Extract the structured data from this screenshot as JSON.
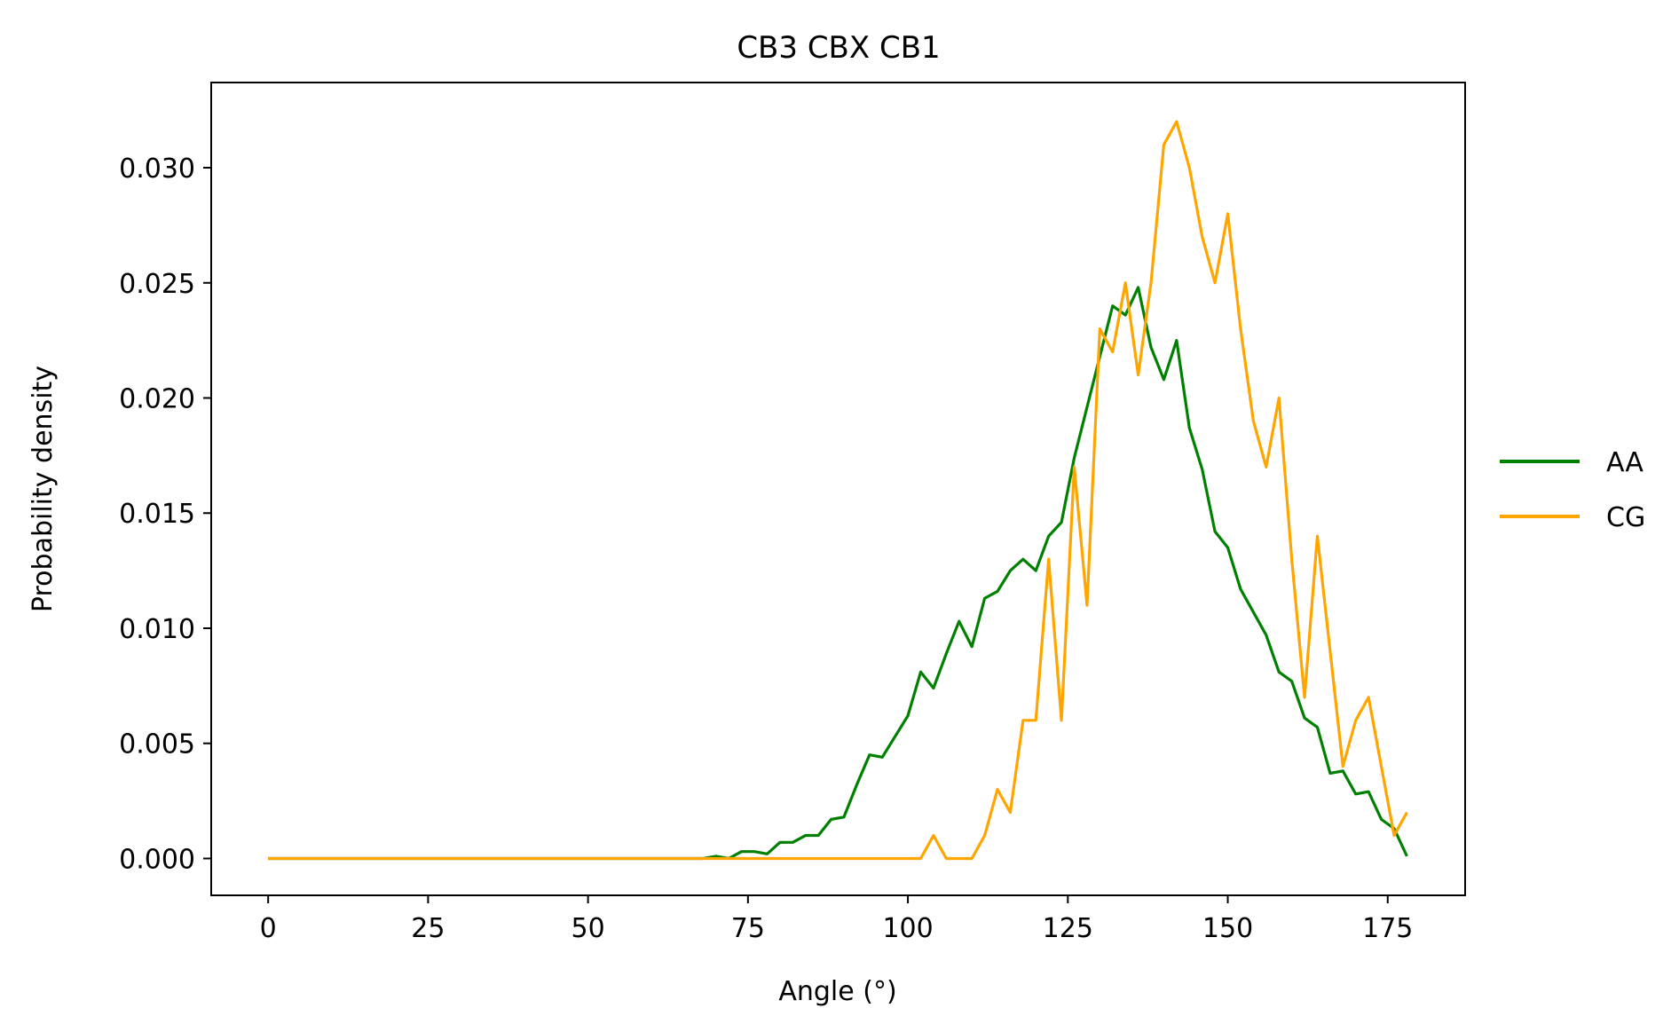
{
  "chart_data": {
    "type": "line",
    "title": "CB3 CBX CB1",
    "xlabel": "Angle (°)",
    "ylabel": "Probability density",
    "xlim": [
      -8.9,
      187.1
    ],
    "ylim": [
      -0.0016,
      0.0337
    ],
    "xticks": [
      0,
      25,
      50,
      75,
      100,
      125,
      150,
      175
    ],
    "xtick_labels": [
      "0",
      "25",
      "50",
      "75",
      "100",
      "125",
      "150",
      "175"
    ],
    "yticks": [
      0.0,
      0.005,
      0.01,
      0.015,
      0.02,
      0.025,
      0.03
    ],
    "ytick_labels": [
      "0.000",
      "0.005",
      "0.010",
      "0.015",
      "0.020",
      "0.025",
      "0.030"
    ],
    "grid": false,
    "legend": "outside-right",
    "x": [
      0,
      2,
      4,
      6,
      8,
      10,
      12,
      14,
      16,
      18,
      20,
      22,
      24,
      26,
      28,
      30,
      32,
      34,
      36,
      38,
      40,
      42,
      44,
      46,
      48,
      50,
      52,
      54,
      56,
      58,
      60,
      62,
      64,
      66,
      68,
      70,
      72,
      74,
      76,
      78,
      80,
      82,
      84,
      86,
      88,
      90,
      92,
      94,
      96,
      98,
      100,
      102,
      104,
      106,
      108,
      110,
      112,
      114,
      116,
      118,
      120,
      122,
      124,
      126,
      128,
      130,
      132,
      134,
      136,
      138,
      140,
      142,
      144,
      146,
      148,
      150,
      152,
      154,
      156,
      158,
      160,
      162,
      164,
      166,
      168,
      170,
      172,
      174,
      176,
      178
    ],
    "series": [
      {
        "name": "AA",
        "color": "#008000",
        "values": [
          0,
          0,
          0,
          0,
          0,
          0,
          0,
          0,
          0,
          0,
          0,
          0,
          0,
          0,
          0,
          0,
          0,
          0,
          0,
          0,
          0,
          0,
          0,
          0,
          0,
          0,
          0,
          0,
          0,
          0,
          0,
          0,
          0,
          0,
          0,
          0.0001,
          0,
          0.0003,
          0.0003,
          0.0002,
          0.0007,
          0.0007,
          0.001,
          0.001,
          0.0017,
          0.0018,
          0.0032,
          0.0045,
          0.0044,
          0.0053,
          0.0062,
          0.0081,
          0.0074,
          0.0089,
          0.0103,
          0.0092,
          0.0113,
          0.0116,
          0.0125,
          0.013,
          0.0125,
          0.014,
          0.0146,
          0.0174,
          0.0196,
          0.0218,
          0.024,
          0.0236,
          0.0248,
          0.0222,
          0.0208,
          0.0225,
          0.0187,
          0.0169,
          0.0142,
          0.0135,
          0.0117,
          0.0107,
          0.0097,
          0.0081,
          0.0077,
          0.0061,
          0.0057,
          0.0037,
          0.0038,
          0.0028,
          0.0029,
          0.0017,
          0.0013,
          0.0001
        ]
      },
      {
        "name": "CG",
        "color": "#FFA500",
        "values": [
          0,
          0,
          0,
          0,
          0,
          0,
          0,
          0,
          0,
          0,
          0,
          0,
          0,
          0,
          0,
          0,
          0,
          0,
          0,
          0,
          0,
          0,
          0,
          0,
          0,
          0,
          0,
          0,
          0,
          0,
          0,
          0,
          0,
          0,
          0,
          0,
          0,
          0,
          0,
          0,
          0,
          0,
          0,
          0,
          0,
          0,
          0,
          0,
          0,
          0,
          0,
          0,
          0.001,
          0,
          0,
          0,
          0.001,
          0.003,
          0.002,
          0.006,
          0.006,
          0.013,
          0.006,
          0.017,
          0.011,
          0.023,
          0.022,
          0.025,
          0.021,
          0.025,
          0.031,
          0.032,
          0.03,
          0.027,
          0.025,
          0.028,
          0.023,
          0.019,
          0.017,
          0.02,
          0.013,
          0.007,
          0.014,
          0.009,
          0.004,
          0.006,
          0.007,
          0.004,
          0.001,
          0.002
        ]
      }
    ]
  }
}
